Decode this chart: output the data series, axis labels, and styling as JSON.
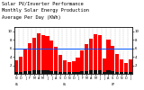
{
  "title_line1": "Solar PV/Inverter Performance",
  "title_line2": "Monthly Solar Energy Production",
  "title_line3": "Average Per Day (KWh)",
  "title_fontsize": 3.8,
  "bar_red_values": [
    3.2,
    4.1,
    5.8,
    7.2,
    8.5,
    9.6,
    9.1,
    8.8,
    7.9,
    6.3,
    4.5,
    3.1,
    2.8,
    3.0,
    3.9,
    5.5,
    6.9,
    8.2,
    9.4,
    9.0,
    3.5,
    8.1,
    6.5,
    4.7,
    3.3,
    2.6,
    3.4
  ],
  "bar_black_values": [
    0.42,
    0.52,
    0.62,
    0.72,
    0.82,
    0.92,
    0.88,
    0.8,
    0.68,
    0.55,
    0.42,
    0.36,
    0.38,
    0.42,
    0.52,
    0.62,
    0.72,
    0.84,
    0.9,
    0.82,
    0.44,
    0.78,
    0.65,
    0.52,
    0.4,
    0.34,
    0.44
  ],
  "avg_line_y": 5.9,
  "ylim": [
    0,
    11
  ],
  "yticks_left": [
    2,
    4,
    6,
    8,
    10
  ],
  "yticks_right": [
    2,
    4,
    6,
    8,
    10
  ],
  "bar_color_red": "#ff0000",
  "bar_color_black": "#111111",
  "avg_line_color": "#0055ff",
  "bg_color": "#ffffff",
  "grid_color": "#bbbbbb",
  "month_labels": [
    "N",
    "D",
    "J",
    "F",
    "M",
    "A",
    "M",
    "J",
    "J",
    "A",
    "S",
    "O",
    "N",
    "D",
    "J",
    "F",
    "M",
    "A",
    "M",
    "J",
    "J",
    "A",
    "S",
    "O",
    "N",
    "D",
    "J"
  ],
  "n_bars": 27,
  "figwidth": 1.6,
  "figheight": 1.0,
  "dpi": 100
}
